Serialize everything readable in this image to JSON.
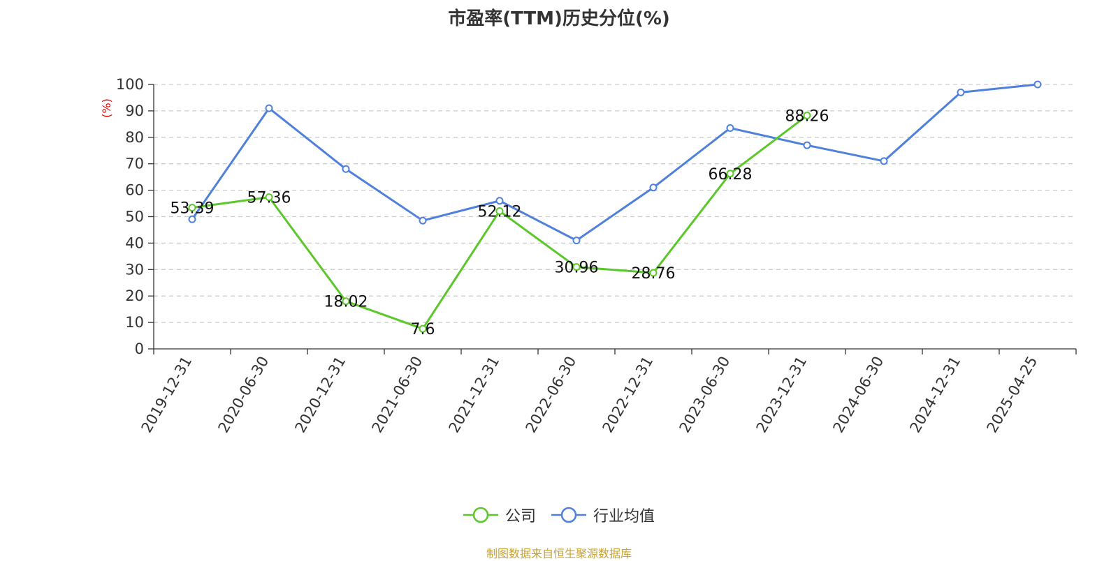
{
  "chart_data": {
    "type": "line",
    "title": "市盈率(TTM)历史分位(%)",
    "ylabel": "(%)",
    "xlabel": "",
    "ylim": [
      0,
      100
    ],
    "yticks": [
      0,
      10,
      20,
      30,
      40,
      50,
      60,
      70,
      80,
      90,
      100
    ],
    "grid": true,
    "legend_position": "bottom",
    "categories": [
      "2019-12-31",
      "2020-06-30",
      "2020-12-31",
      "2021-06-30",
      "2021-12-31",
      "2022-06-30",
      "2022-12-31",
      "2023-06-30",
      "2023-12-31",
      "2024-06-30",
      "2024-12-31",
      "2025-04-25"
    ],
    "series": [
      {
        "name": "公司",
        "color": "#5cc72b",
        "show_labels": true,
        "values": [
          53.39,
          57.36,
          18.02,
          7.6,
          52.12,
          30.96,
          28.76,
          66.28,
          88.26,
          null,
          null,
          null
        ]
      },
      {
        "name": "行业均值",
        "color": "#4f80dc",
        "show_labels": false,
        "values": [
          49,
          91,
          68,
          48.5,
          56,
          41,
          61,
          83.5,
          77,
          71,
          97,
          100
        ]
      }
    ]
  },
  "source_note": "制图数据来自恒生聚源数据库"
}
